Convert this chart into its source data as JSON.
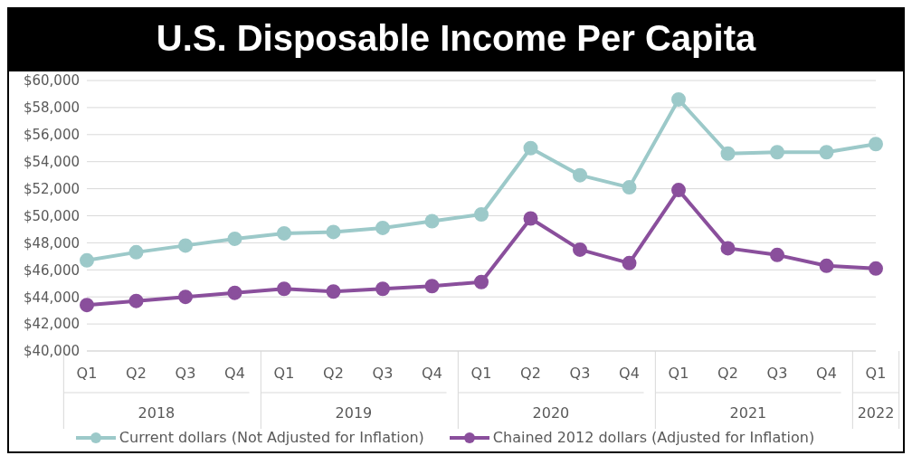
{
  "chart_data": {
    "type": "line",
    "title": "U.S. Disposable Income Per Capita",
    "categories": [
      "Q1",
      "Q2",
      "Q3",
      "Q4",
      "Q1",
      "Q2",
      "Q3",
      "Q4",
      "Q1",
      "Q2",
      "Q3",
      "Q4",
      "Q1",
      "Q2",
      "Q3",
      "Q4",
      "Q1"
    ],
    "annotations": [
      "2018",
      "2019",
      "2020",
      "2021",
      "2022"
    ],
    "series": [
      {
        "name": "Current dollars (Not Adjusted for Inflation)",
        "color": "#9cc9c9",
        "values": [
          46700,
          47300,
          47800,
          48300,
          48700,
          48800,
          49100,
          49600,
          50100,
          55000,
          53000,
          52100,
          58600,
          54600,
          54700,
          54700,
          55300
        ]
      },
      {
        "name": "Chained 2012 dollars (Adjusted for Inflation)",
        "color": "#8a4f9c",
        "values": [
          43400,
          43700,
          44000,
          44300,
          44600,
          44400,
          44600,
          44800,
          45100,
          49800,
          47500,
          46500,
          51900,
          47600,
          47100,
          46300,
          46100
        ]
      }
    ],
    "ylim": [
      40000,
      60000
    ],
    "yticks": [
      {
        "value": 40000,
        "label": "$40,000"
      },
      {
        "value": 42000,
        "label": "$42,000"
      },
      {
        "value": 44000,
        "label": "$44,000"
      },
      {
        "value": 46000,
        "label": "$46,000"
      },
      {
        "value": 48000,
        "label": "$48,000"
      },
      {
        "value": 50000,
        "label": "$50,000"
      },
      {
        "value": 52000,
        "label": "$52,000"
      },
      {
        "value": 54000,
        "label": "$54,000"
      },
      {
        "value": 56000,
        "label": "$56,000"
      },
      {
        "value": 58000,
        "label": "$58,000"
      },
      {
        "value": 60000,
        "label": "$60,000"
      }
    ],
    "grid": "y",
    "legend": "bottom",
    "marker": "circle",
    "line_style": "solid"
  }
}
